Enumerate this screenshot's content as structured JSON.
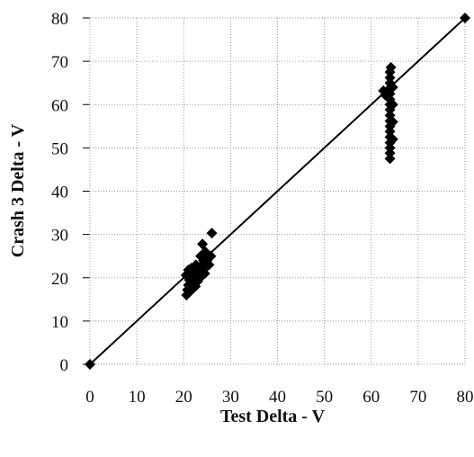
{
  "chart_data": {
    "type": "scatter",
    "title": "",
    "xlabel": "Test Delta - V",
    "ylabel": "Crash 3 Delta - V",
    "xlim": [
      0,
      80
    ],
    "ylim": [
      0,
      80
    ],
    "x_ticks": [
      "0",
      "10",
      "20",
      "30",
      "40",
      "50",
      "60",
      "70",
      "80"
    ],
    "y_ticks": [
      "0",
      "10",
      "20",
      "30",
      "40",
      "50",
      "60",
      "70",
      "80"
    ],
    "grid": "dotted",
    "legend": "none",
    "series": [
      {
        "marker": "diamond",
        "color": "#000000",
        "points": [
          [
            0,
            0
          ],
          [
            20.6,
            16.0
          ],
          [
            20.8,
            17.2
          ],
          [
            21.0,
            18.3
          ],
          [
            21.2,
            19.5
          ],
          [
            20.5,
            20.6
          ],
          [
            21.0,
            21.8
          ],
          [
            21.5,
            17.0
          ],
          [
            22.0,
            18.5
          ],
          [
            21.8,
            20.0
          ],
          [
            22.2,
            21.0
          ],
          [
            21.6,
            22.2
          ],
          [
            22.5,
            18.0
          ],
          [
            23.0,
            19.2
          ],
          [
            22.8,
            20.4
          ],
          [
            23.2,
            21.6
          ],
          [
            22.6,
            23.0
          ],
          [
            23.5,
            20.0
          ],
          [
            23.8,
            21.4
          ],
          [
            24.0,
            22.6
          ],
          [
            24.2,
            24.0
          ],
          [
            23.6,
            25.0
          ],
          [
            24.5,
            21.0
          ],
          [
            24.8,
            22.5
          ],
          [
            25.0,
            24.0
          ],
          [
            24.6,
            26.0
          ],
          [
            24.0,
            27.8
          ],
          [
            25.4,
            23.0
          ],
          [
            25.8,
            25.0
          ],
          [
            26.0,
            30.3
          ],
          [
            62.6,
            63.2
          ],
          [
            63.0,
            62.2
          ],
          [
            64.0,
            47.5
          ],
          [
            64.0,
            48.8
          ],
          [
            64.0,
            50.0
          ],
          [
            64.0,
            51.2
          ],
          [
            64.0,
            52.5
          ],
          [
            64.0,
            53.8
          ],
          [
            64.0,
            55.0
          ],
          [
            64.0,
            56.2
          ],
          [
            64.0,
            57.5
          ],
          [
            64.0,
            58.8
          ],
          [
            64.0,
            60.0
          ],
          [
            64.0,
            61.2
          ],
          [
            64.0,
            62.5
          ],
          [
            64.0,
            63.8
          ],
          [
            64.0,
            65.0
          ],
          [
            64.0,
            66.2
          ],
          [
            64.0,
            67.5
          ],
          [
            64.2,
            68.6
          ],
          [
            64.6,
            52.0
          ],
          [
            64.6,
            56.0
          ],
          [
            64.6,
            60.0
          ],
          [
            64.6,
            64.0
          ],
          [
            80,
            80
          ]
        ]
      }
    ],
    "reference_line": {
      "from": [
        0,
        0
      ],
      "to": [
        80,
        80
      ],
      "color": "#000000"
    },
    "colors": {
      "marker": "#000000",
      "line": "#000000",
      "grid": "#9a9a9a"
    }
  }
}
